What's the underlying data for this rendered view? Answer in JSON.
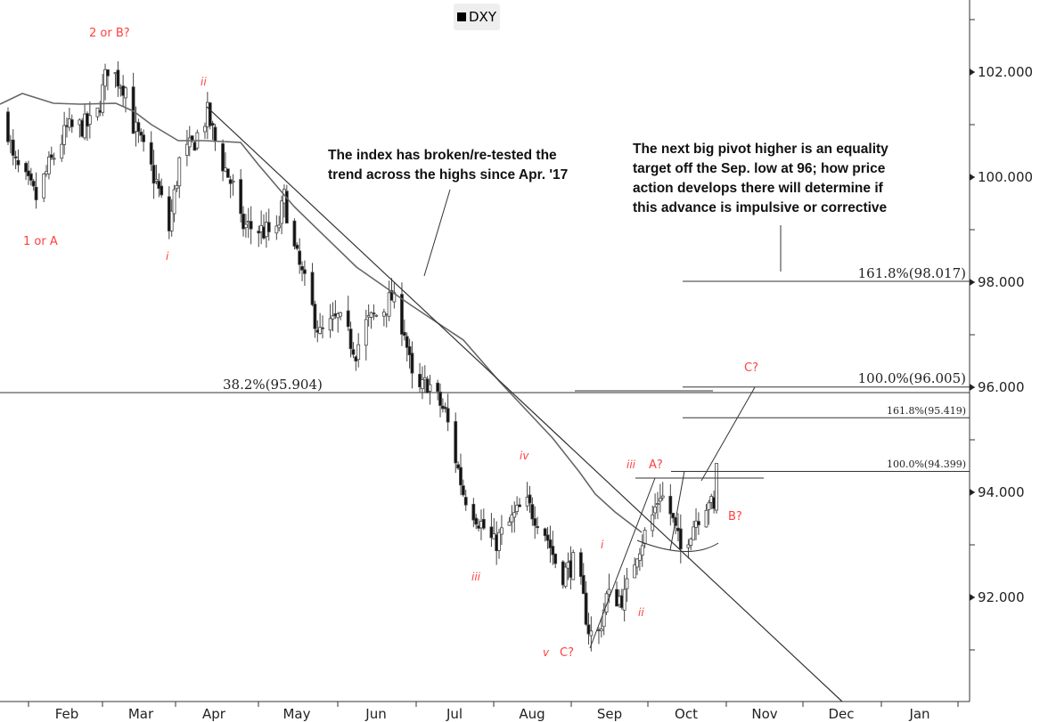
{
  "chart_data": {
    "type": "candlestick",
    "title": "",
    "legend": {
      "label": "DXY",
      "placement": "top-center"
    },
    "ylim": [
      90,
      103
    ],
    "y_ticks": [
      "102.000",
      "100.000",
      "98.000",
      "96.000",
      "94.000",
      "92.000"
    ],
    "y_tick_values": [
      102,
      100,
      98,
      96,
      94,
      92
    ],
    "x_ticks": [
      "Feb",
      "Mar",
      "Apr",
      "May",
      "Jun",
      "Jul",
      "Aug",
      "Sep",
      "Oct",
      "Nov",
      "Dec",
      "Jan"
    ],
    "approx_close_path_day_value": [
      [
        21,
        101.2
      ],
      [
        24,
        100.3
      ],
      [
        33,
        99.6
      ],
      [
        38,
        100.2
      ],
      [
        45,
        100.9
      ],
      [
        54,
        101.0
      ],
      [
        57,
        101.2
      ],
      [
        61,
        102.1
      ],
      [
        68,
        101.7
      ],
      [
        71,
        101.0
      ],
      [
        75,
        100.5
      ],
      [
        80,
        99.9
      ],
      [
        85,
        99.0
      ],
      [
        89,
        100.3
      ],
      [
        94,
        100.6
      ],
      [
        100,
        101.2
      ],
      [
        104,
        100.5
      ],
      [
        110,
        99.8
      ],
      [
        113,
        99.1
      ],
      [
        120,
        99.0
      ],
      [
        127,
        98.9
      ],
      [
        130,
        99.6
      ],
      [
        134,
        98.6
      ],
      [
        139,
        97.8
      ],
      [
        144,
        97.0
      ],
      [
        151,
        97.3
      ],
      [
        158,
        96.7
      ],
      [
        162,
        97.2
      ],
      [
        169,
        97.5
      ],
      [
        172,
        97.7
      ],
      [
        177,
        97.1
      ],
      [
        181,
        95.8
      ],
      [
        186,
        96.1
      ],
      [
        193,
        95.5
      ],
      [
        200,
        94.0
      ],
      [
        207,
        93.4
      ],
      [
        212,
        93.0
      ],
      [
        218,
        93.4
      ],
      [
        224,
        93.8
      ],
      [
        231,
        93.4
      ],
      [
        238,
        92.4
      ],
      [
        244,
        92.7
      ],
      [
        249,
        91.4
      ],
      [
        252,
        91.1
      ],
      [
        256,
        92.0
      ],
      [
        263,
        92.0
      ],
      [
        268,
        92.9
      ],
      [
        273,
        93.4
      ],
      [
        277,
        94.0
      ],
      [
        281,
        93.6
      ],
      [
        285,
        92.9
      ],
      [
        291,
        93.5
      ],
      [
        296,
        93.9
      ],
      [
        298,
        93.6
      ],
      [
        299,
        94.6
      ],
      [
        300,
        94.9
      ]
    ],
    "fib_levels": [
      {
        "label": "38.2%(95.904)",
        "value": 95.904
      },
      {
        "label": "161.8%(98.017)",
        "value": 98.017
      },
      {
        "label": "100.0%(96.005)",
        "value": 96.005
      },
      {
        "label": "161.8%(95.419)",
        "value": 95.419
      },
      {
        "label": "100.0%(94.399)",
        "value": 94.399
      }
    ],
    "wave_labels": {
      "w_2orB": "2 or B?",
      "w_1orA": "1 or A",
      "w_i1": "i",
      "w_ii1": "ii",
      "w_iii1": "iii",
      "w_iv": "iv",
      "w_v": "v",
      "w_C1": "C?",
      "w_i2": "i",
      "w_ii2": "ii",
      "w_iii2": "iii",
      "w_A": "A?",
      "w_B": "B?",
      "w_C2": "C?"
    },
    "annotations": {
      "trend_note": [
        "The index has broken/re-tested the",
        "trend across the highs since Apr. '17"
      ],
      "pivot_note": [
        "The next big pivot higher is an equality",
        "target off the Sep. low at 96; how price",
        "action develops there will determine if",
        "this advance is impulsive or corrective"
      ]
    },
    "colors": {
      "wave": "#ff4040",
      "candle_down": "#111111",
      "candle_up": "#ffffff",
      "lines": "#333333"
    }
  }
}
